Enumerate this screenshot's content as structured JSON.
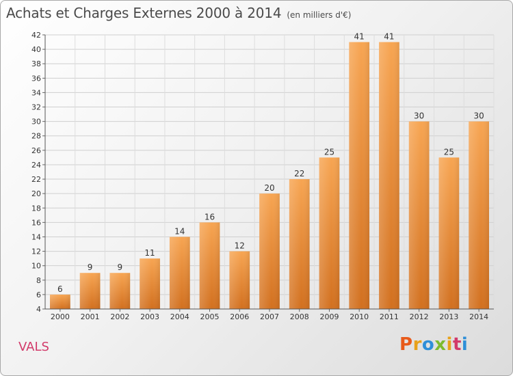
{
  "header": {
    "title": "Achats et Charges Externes 2000 à 2014",
    "unit": "(en milliers d'€)"
  },
  "footer": {
    "city": "VALS",
    "logo_text": "Proxiti",
    "logo_colors": [
      "#e85a1a",
      "#e8a21a",
      "#2f8fd8",
      "#7dbb2e",
      "#e8a21a",
      "#d23a6a",
      "#2f8fd8"
    ]
  },
  "chart_data": {
    "type": "bar",
    "title": "Achats et Charges Externes 2000 à 2014",
    "subtitle": "(en milliers d'€)",
    "categories": [
      "2000",
      "2001",
      "2002",
      "2003",
      "2004",
      "2005",
      "2006",
      "2007",
      "2008",
      "2009",
      "2010",
      "2011",
      "2012",
      "2013",
      "2014"
    ],
    "values": [
      6,
      9,
      9,
      11,
      14,
      16,
      12,
      20,
      22,
      25,
      41,
      41,
      30,
      25,
      30
    ],
    "ylim": [
      4,
      42
    ],
    "yticks": [
      4,
      6,
      8,
      10,
      12,
      14,
      16,
      18,
      20,
      22,
      24,
      26,
      28,
      30,
      32,
      34,
      36,
      38,
      40,
      42
    ],
    "grid": true,
    "bar_color": "#f0963a",
    "bar_color_dark": "#c9661a"
  }
}
